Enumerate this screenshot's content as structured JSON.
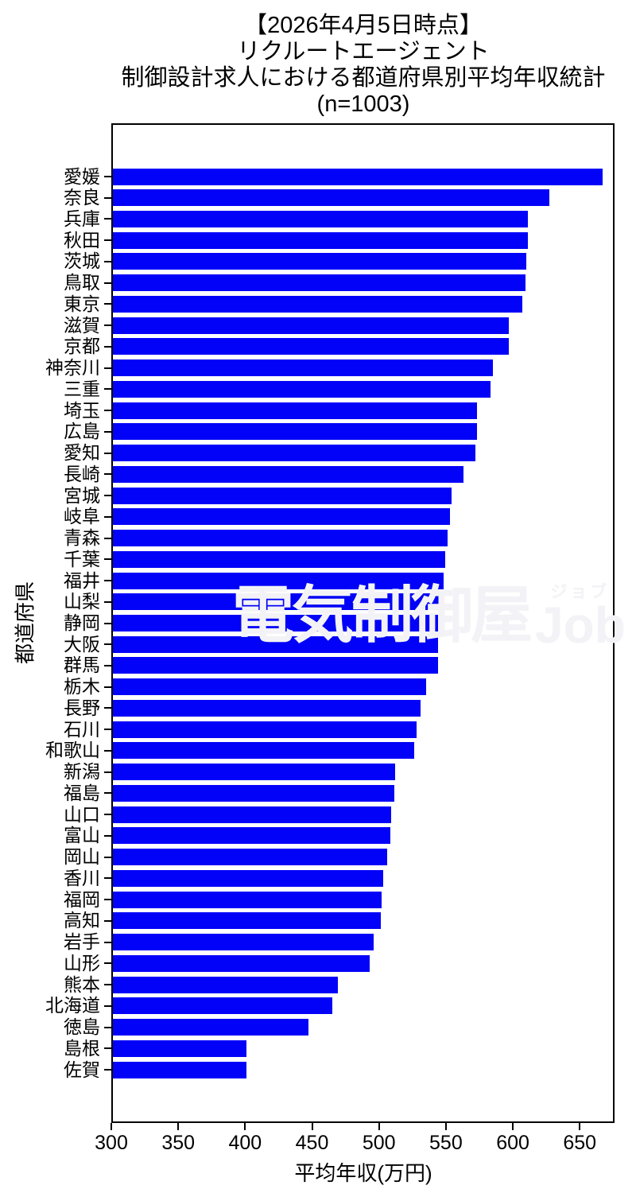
{
  "title": {
    "lines": [
      "【2026年4月5日時点】",
      "リクルートエージェント",
      "制御設計求人における都道府県別平均年収統計",
      "(n=1003)"
    ]
  },
  "watermark": {
    "kanji": "電気制御屋",
    "kana": "ジョブ",
    "latin": "Job"
  },
  "chart_data": {
    "type": "bar",
    "orientation": "horizontal",
    "title": "【2026年4月5日時点】リクルートエージェント 制御設計求人における都道府県別平均年収統計 (n=1003)",
    "xlabel": "平均年収(万円)",
    "ylabel": "都道府県",
    "xlim": [
      300,
      676
    ],
    "xticks": [
      300,
      350,
      400,
      450,
      500,
      550,
      600,
      650
    ],
    "grid": false,
    "bar_color": "#0202f8",
    "categories": [
      "愛媛",
      "奈良",
      "兵庫",
      "秋田",
      "茨城",
      "鳥取",
      "東京",
      "滋賀",
      "京都",
      "神奈川",
      "三重",
      "埼玉",
      "広島",
      "愛知",
      "長崎",
      "宮城",
      "岐阜",
      "青森",
      "千葉",
      "福井",
      "山梨",
      "静岡",
      "大阪",
      "群馬",
      "栃木",
      "長野",
      "石川",
      "和歌山",
      "新潟",
      "福島",
      "山口",
      "富山",
      "岡山",
      "香川",
      "福岡",
      "高知",
      "岩手",
      "山形",
      "熊本",
      "北海道",
      "徳島",
      "島根",
      "佐賀"
    ],
    "values": [
      666,
      626,
      610,
      610,
      609,
      608,
      606,
      596,
      596,
      584,
      582,
      572,
      572,
      571,
      562,
      553,
      552,
      550,
      548,
      547,
      544,
      543,
      543,
      543,
      534,
      530,
      527,
      525,
      511,
      510,
      508,
      507,
      505,
      502,
      501,
      500,
      495,
      492,
      468,
      464,
      446,
      400,
      400
    ]
  }
}
